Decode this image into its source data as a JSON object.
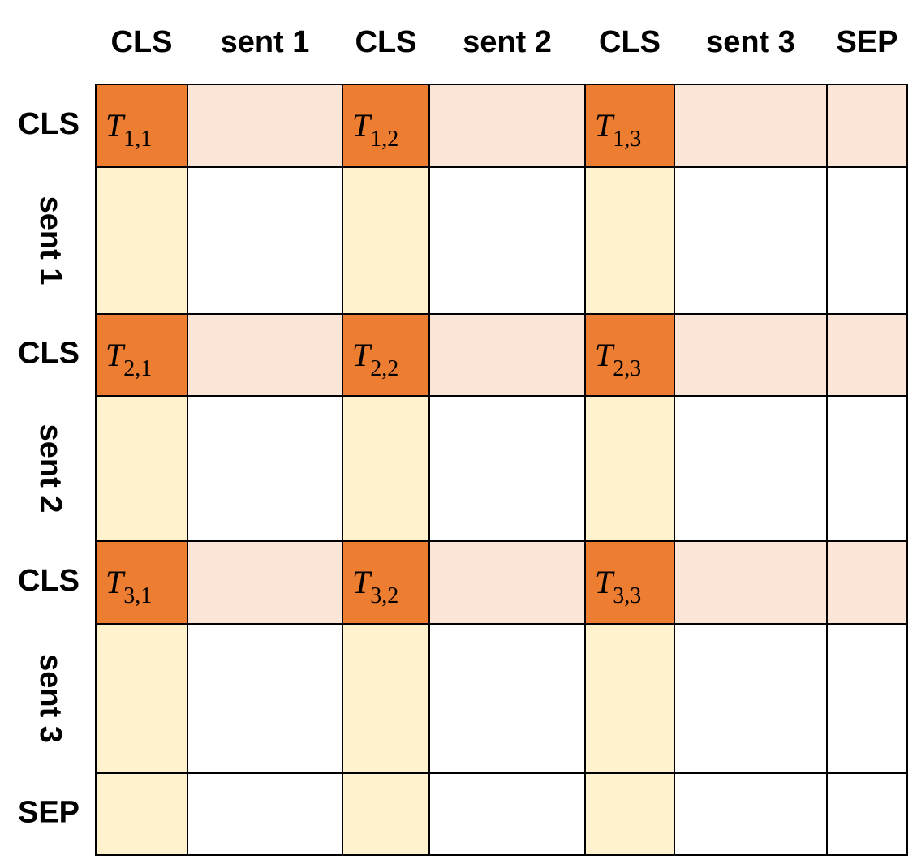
{
  "columns": [
    "CLS",
    "sent 1",
    "CLS",
    "sent 2",
    "CLS",
    "sent 3",
    "SEP"
  ],
  "rows": [
    "CLS",
    "sent 1",
    "CLS",
    "sent 2",
    "CLS",
    "sent 3",
    "SEP"
  ],
  "cls_cells": [
    [
      {
        "symbol": "T",
        "subscript": "1,1"
      },
      {
        "symbol": "T",
        "subscript": "1,2"
      },
      {
        "symbol": "T",
        "subscript": "1,3"
      }
    ],
    [
      {
        "symbol": "T",
        "subscript": "2,1"
      },
      {
        "symbol": "T",
        "subscript": "2,2"
      },
      {
        "symbol": "T",
        "subscript": "2,3"
      }
    ],
    [
      {
        "symbol": "T",
        "subscript": "3,1"
      },
      {
        "symbol": "T",
        "subscript": "3,2"
      },
      {
        "symbol": "T",
        "subscript": "3,3"
      }
    ]
  ]
}
